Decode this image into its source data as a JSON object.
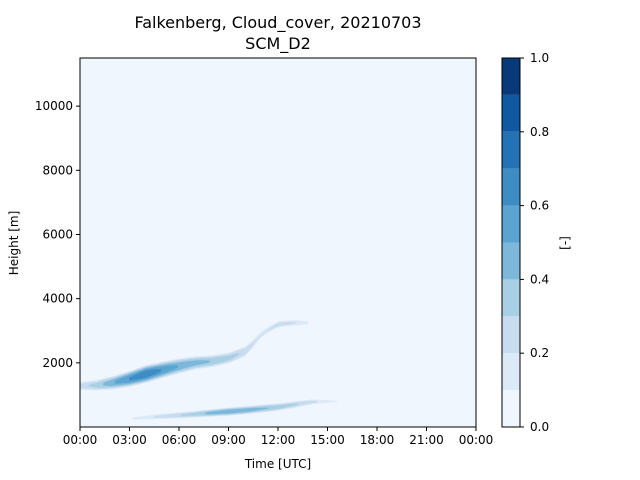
{
  "chart_data": {
    "type": "heatmap",
    "title": "Falkenberg, Cloud_cover, 20210703",
    "subtitle": "SCM_D2",
    "xlabel": "Time [UTC]",
    "ylabel": "Height [m]",
    "x_tick_labels": [
      "00:00",
      "03:00",
      "06:00",
      "09:00",
      "12:00",
      "15:00",
      "18:00",
      "21:00",
      "00:00"
    ],
    "x_range_hours": [
      0,
      24
    ],
    "y_ticks": [
      2000,
      4000,
      6000,
      8000,
      10000
    ],
    "ylim": [
      0,
      11500
    ],
    "colorbar": {
      "label": "[-]",
      "ticks": [
        0.0,
        0.2,
        0.4,
        0.6,
        0.8,
        1.0
      ],
      "tick_labels": [
        "0.0",
        "0.2",
        "0.4",
        "0.6",
        "0.8",
        "1.0"
      ],
      "levels": [
        0.0,
        0.1,
        0.2,
        0.3,
        0.4,
        0.5,
        0.6,
        0.7,
        0.8,
        0.9,
        1.0
      ],
      "colors": [
        "#f0f6fd",
        "#dce9f6",
        "#c8dcf0",
        "#a9cfe5",
        "#7db8da",
        "#5ba3d0",
        "#3d8dc4",
        "#2272b5",
        "#0e59a2",
        "#083a7a"
      ]
    },
    "cloud_layers": [
      {
        "name": "upper layer",
        "hours": [
          0.0,
          1.0,
          2.0,
          3.0,
          4.0,
          5.0,
          6.0,
          7.0,
          8.0,
          9.0,
          10.0,
          10.5,
          11.0,
          12.0,
          13.0,
          14.0
        ],
        "center_m": [
          1280,
          1300,
          1380,
          1500,
          1650,
          1780,
          1900,
          2000,
          2050,
          2150,
          2350,
          2600,
          2900,
          3200,
          3250,
          3250
        ],
        "halfwidth_m": [
          160,
          190,
          230,
          270,
          300,
          280,
          260,
          230,
          210,
          200,
          190,
          160,
          130,
          120,
          110,
          90
        ],
        "max_cover": [
          0.25,
          0.35,
          0.5,
          0.62,
          0.7,
          0.6,
          0.5,
          0.45,
          0.4,
          0.35,
          0.28,
          0.22,
          0.18,
          0.25,
          0.22,
          0.1
        ]
      },
      {
        "name": "lower layer",
        "hours": [
          3.0,
          5.0,
          7.0,
          8.0,
          9.0,
          10.0,
          11.0,
          12.0,
          13.0,
          14.0,
          15.0,
          16.0
        ],
        "center_m": [
          260,
          330,
          400,
          440,
          480,
          520,
          570,
          620,
          700,
          780,
          800,
          800
        ],
        "halfwidth_m": [
          70,
          100,
          120,
          130,
          140,
          140,
          140,
          130,
          120,
          100,
          70,
          40
        ],
        "max_cover": [
          0.1,
          0.25,
          0.35,
          0.45,
          0.5,
          0.48,
          0.42,
          0.38,
          0.32,
          0.25,
          0.15,
          0.08
        ]
      }
    ]
  }
}
